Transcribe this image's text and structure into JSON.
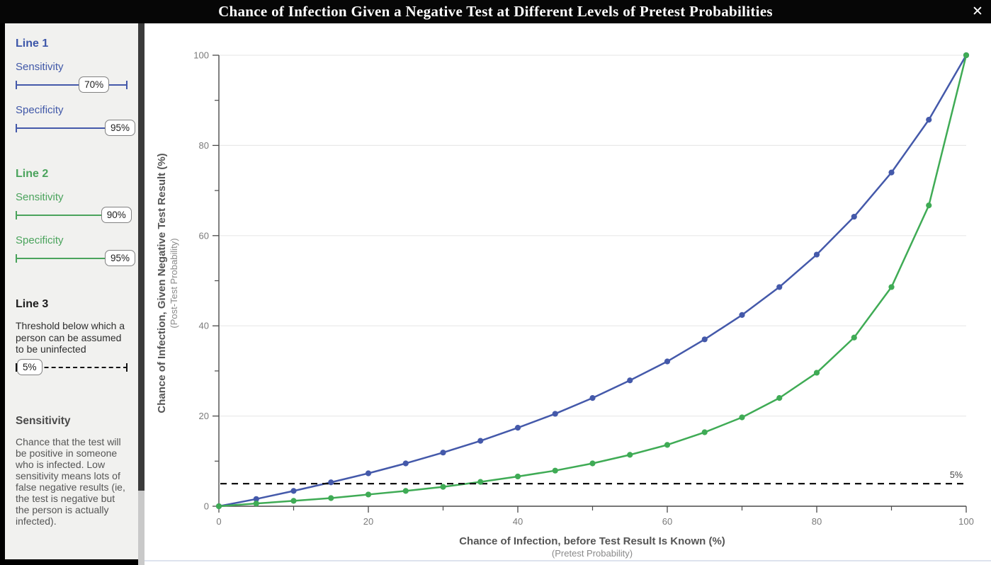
{
  "window": {
    "title": "Chance of Infection Given a Negative Test at Different Levels of Pretest Probabilities",
    "close": "✕"
  },
  "sidebar": {
    "line1": {
      "heading": "Line 1",
      "sensitivity_label": "Sensitivity",
      "sensitivity_value": "70%",
      "sensitivity_pct": 70,
      "specificity_label": "Specificity",
      "specificity_value": "95%",
      "specificity_pct": 95
    },
    "line2": {
      "heading": "Line 2",
      "sensitivity_label": "Sensitivity",
      "sensitivity_value": "90%",
      "sensitivity_pct": 90,
      "specificity_label": "Specificity",
      "specificity_value": "95%",
      "specificity_pct": 95
    },
    "line3": {
      "heading": "Line 3",
      "description": "Threshold below which a person can be assumed to be uninfected",
      "value": "5%",
      "pct": 5
    },
    "info": {
      "heading": "Sensitivity",
      "body": "Chance that the test will be positive in someone who is infected. Low sensitivity means lots of false negative results (ie, the test is negative but the person is actually infected)."
    }
  },
  "colors": {
    "line1": "#4459aa",
    "line2": "#3fab55",
    "threshold": "#111111",
    "axis": "#4a4a4a",
    "tick_label": "#7a7a7a",
    "grid": "#e9e9e9"
  },
  "chart_data": {
    "type": "line",
    "xlabel": "Chance of Infection, before Test Result Is Known (%)",
    "xlabel_sub": "(Pretest Probability)",
    "ylabel": "Chance of Infection, Given Negative Test Result (%)",
    "ylabel_sub": "(Post-Test Probability)",
    "xlim": [
      0,
      100
    ],
    "ylim": [
      0,
      100
    ],
    "grid": "horizontal",
    "legend": "none",
    "x_major_ticks": [
      0,
      20,
      40,
      60,
      80,
      100
    ],
    "x_minor_ticks": [
      10,
      30,
      50,
      70,
      90
    ],
    "y_major_ticks": [
      0,
      20,
      40,
      60,
      80,
      100
    ],
    "y_minor_ticks": [
      10,
      30,
      50,
      70,
      90
    ],
    "x": [
      0,
      5,
      10,
      15,
      20,
      25,
      30,
      35,
      40,
      45,
      50,
      55,
      60,
      65,
      70,
      75,
      80,
      85,
      90,
      95,
      100
    ],
    "series": [
      {
        "name": "Line 1 (Sensitivity 70%, Specificity 95%)",
        "color": "#4459aa",
        "values": [
          0,
          1.6,
          3.4,
          5.3,
          7.3,
          9.5,
          11.9,
          14.5,
          17.4,
          20.5,
          24,
          27.9,
          32.1,
          37,
          42.4,
          48.6,
          55.8,
          64.2,
          74,
          85.7,
          100
        ]
      },
      {
        "name": "Line 2 (Sensitivity 90%, Specificity 95%)",
        "color": "#3fab55",
        "values": [
          0,
          0.6,
          1.2,
          1.8,
          2.6,
          3.4,
          4.3,
          5.4,
          6.6,
          7.9,
          9.5,
          11.4,
          13.6,
          16.4,
          19.7,
          24,
          29.6,
          37.4,
          48.6,
          66.7,
          100
        ]
      }
    ],
    "threshold": {
      "value": 5,
      "label": "5%",
      "style": "dashed",
      "color": "#111111"
    }
  }
}
